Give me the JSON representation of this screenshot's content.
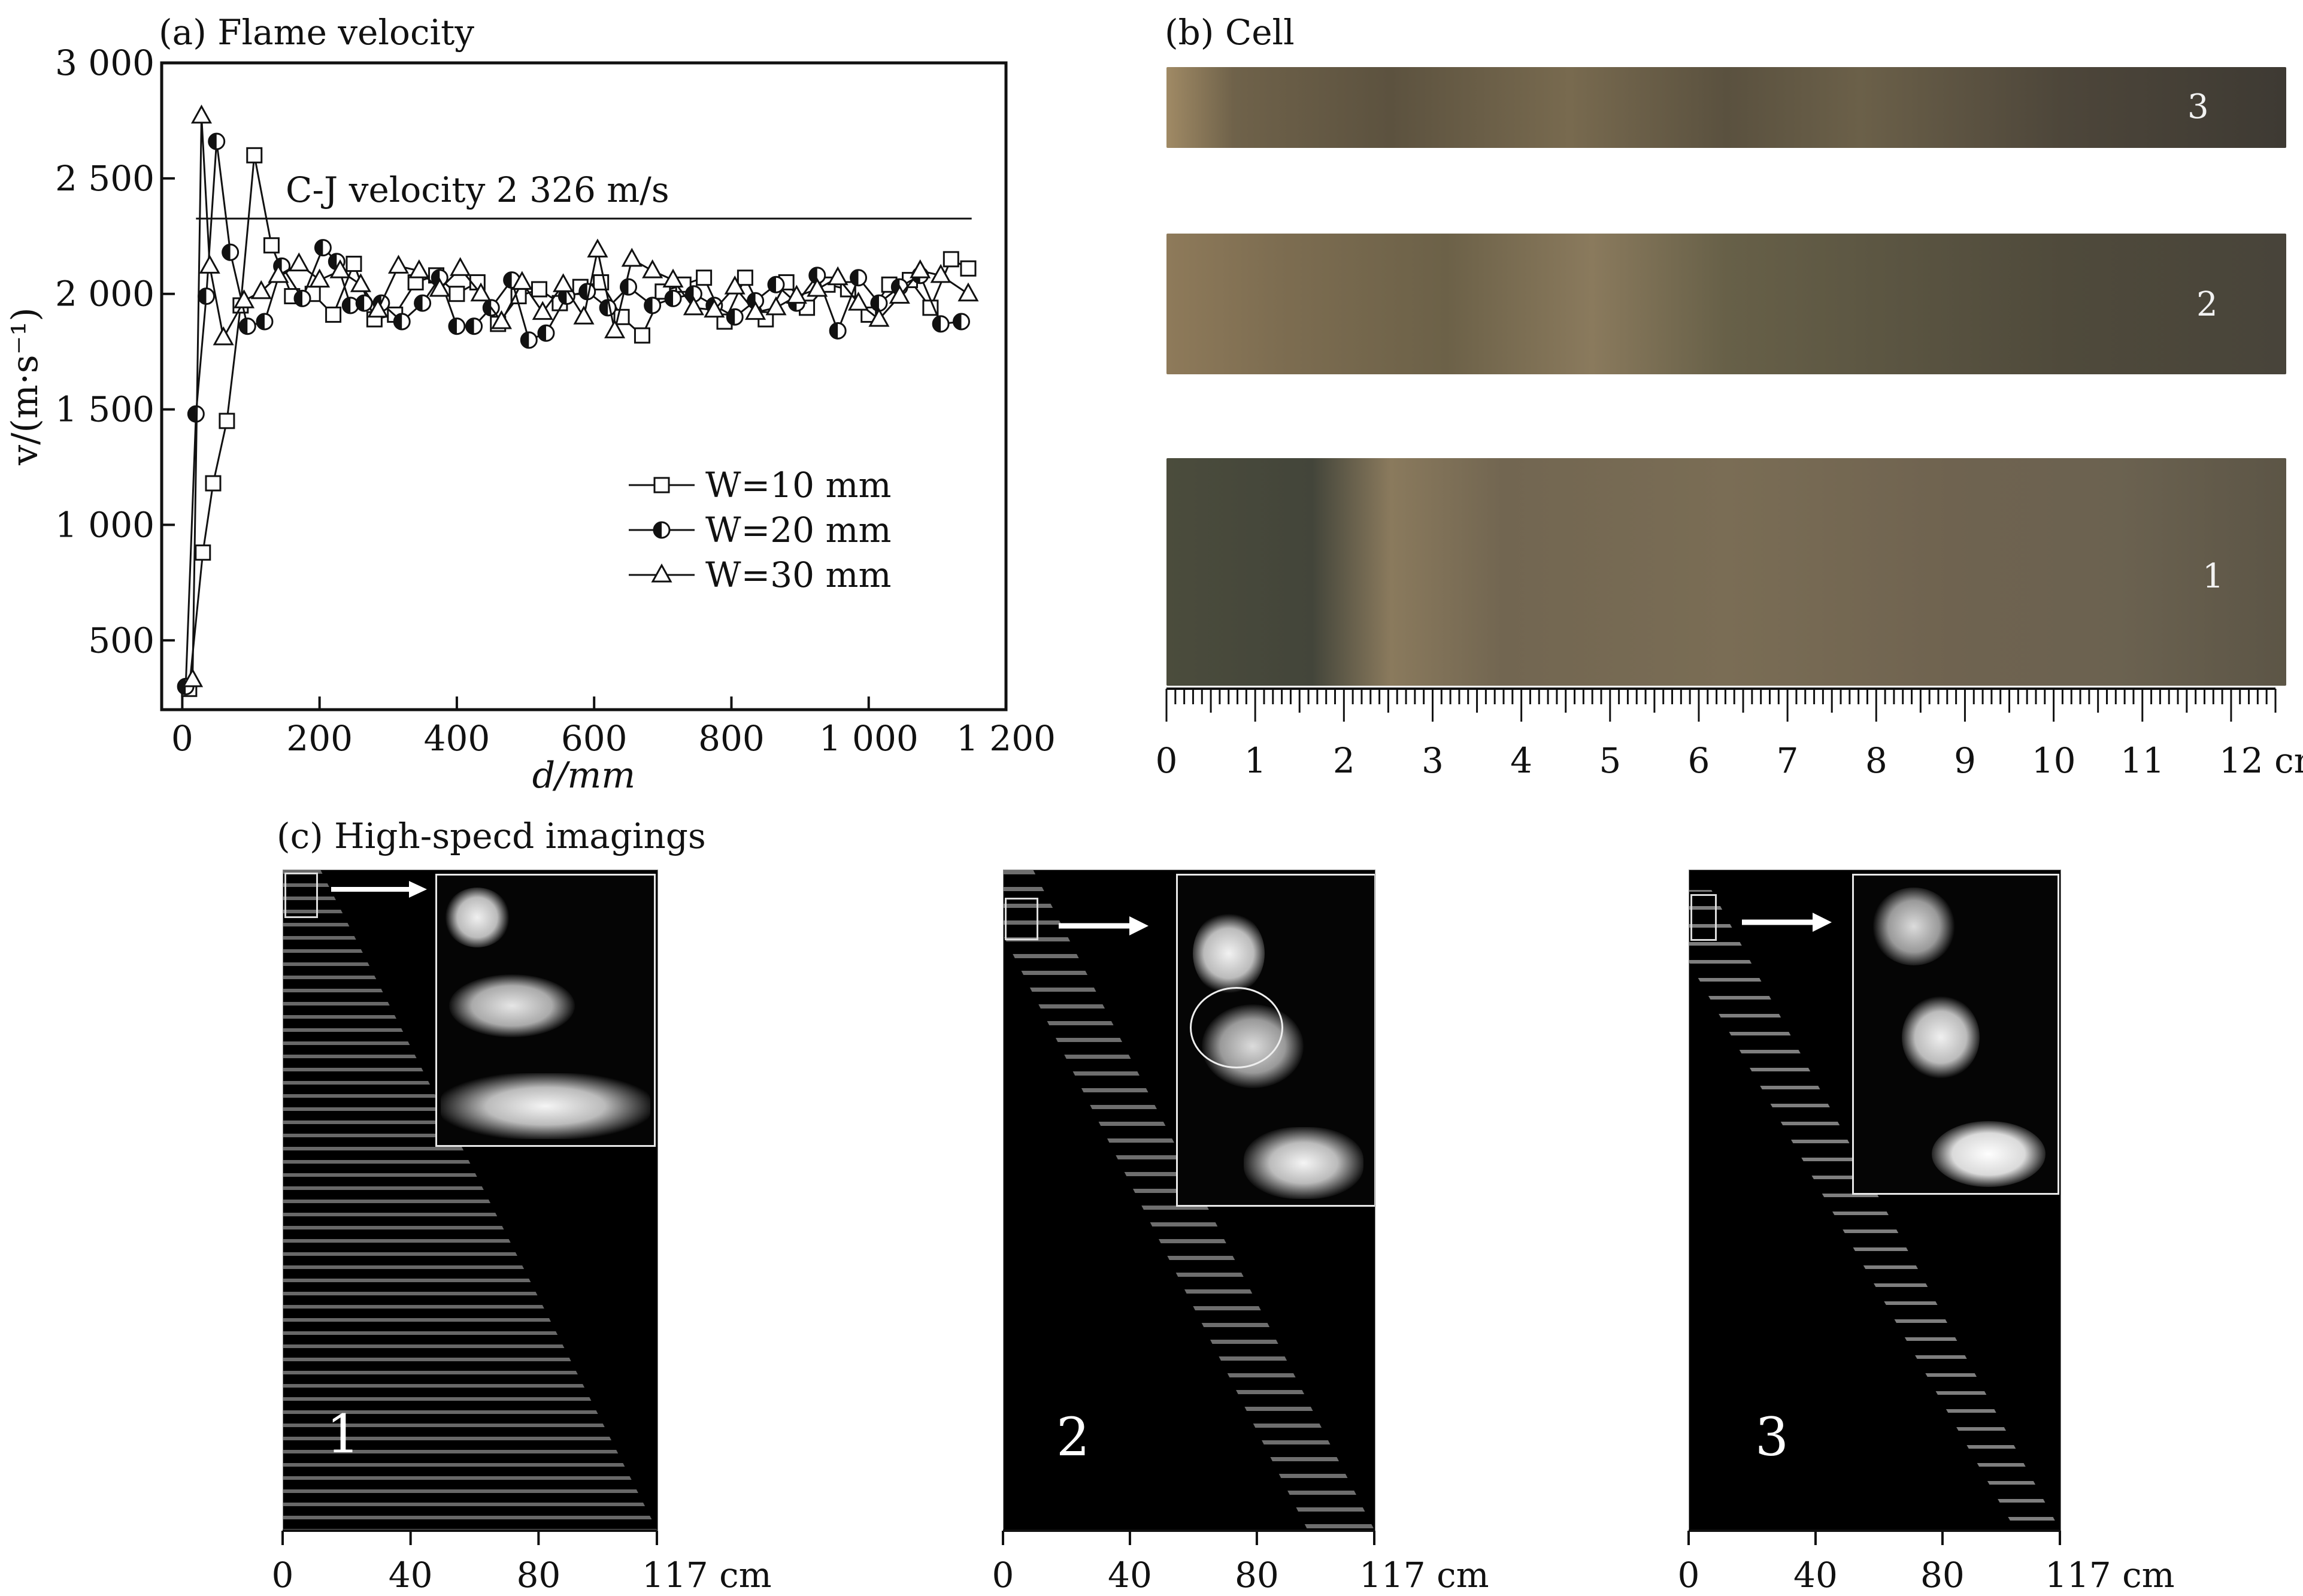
{
  "panel_a": {
    "title": "(a) Flame velocity"
  },
  "panel_b": {
    "title": "(b) Cell",
    "strip_labels": [
      "3",
      "2",
      "1"
    ]
  },
  "panel_c": {
    "title": "(c) High-specd imagings",
    "image_labels": [
      "1",
      "2",
      "3"
    ]
  },
  "chart_data": [
    {
      "type": "line",
      "title": "(a) Flame velocity",
      "xlabel": "d/mm",
      "ylabel": "v/(m·s⁻¹)",
      "xlim": [
        -30,
        1200
      ],
      "ylim": [
        200,
        3000
      ],
      "xticks": [
        0,
        200,
        400,
        600,
        800,
        1000,
        1200
      ],
      "xtick_labels": [
        "0",
        "200",
        "400",
        "600",
        "800",
        "1 000",
        "1 200"
      ],
      "yticks": [
        500,
        1000,
        1500,
        2000,
        2500,
        3000
      ],
      "ytick_labels": [
        "500",
        "1 000",
        "1 500",
        "2 000",
        "2 500",
        "3 000"
      ],
      "reference_line": {
        "label": "C-J velocity 2 326 m/s",
        "y": 2326,
        "x_range": [
          20,
          1150
        ]
      },
      "legend_position": "center-right",
      "series": [
        {
          "name": "W=10 mm",
          "marker": "square",
          "x": [
            10,
            30,
            45,
            65,
            85,
            105,
            130,
            160,
            190,
            220,
            250,
            280,
            310,
            340,
            370,
            400,
            430,
            460,
            490,
            520,
            550,
            580,
            610,
            640,
            670,
            700,
            730,
            760,
            790,
            820,
            850,
            880,
            910,
            940,
            970,
            1000,
            1030,
            1060,
            1090,
            1120,
            1145
          ],
          "y": [
            290,
            880,
            1180,
            1450,
            1950,
            2600,
            2210,
            1990,
            2000,
            1910,
            2130,
            1890,
            1910,
            2050,
            2080,
            2000,
            2050,
            1870,
            1990,
            2020,
            1960,
            2030,
            2050,
            1900,
            1820,
            2010,
            2040,
            2070,
            1880,
            2070,
            1890,
            2050,
            1940,
            2040,
            2020,
            1910,
            2040,
            2060,
            1940,
            2150,
            2110
          ]
        },
        {
          "name": "W=20 mm",
          "marker": "half-filled-circle",
          "x": [
            5,
            20,
            35,
            50,
            70,
            95,
            120,
            145,
            175,
            205,
            225,
            245,
            265,
            290,
            320,
            350,
            375,
            400,
            425,
            450,
            480,
            505,
            530,
            560,
            590,
            620,
            650,
            685,
            715,
            745,
            775,
            805,
            835,
            865,
            895,
            925,
            955,
            985,
            1015,
            1045,
            1075,
            1105,
            1135
          ],
          "y": [
            300,
            1480,
            1990,
            2660,
            2180,
            1860,
            1880,
            2120,
            1980,
            2200,
            2140,
            1950,
            1960,
            1960,
            1880,
            1960,
            2070,
            1860,
            1860,
            1940,
            2060,
            1800,
            1830,
            1990,
            2010,
            1940,
            2030,
            1950,
            1980,
            2000,
            1950,
            1900,
            1970,
            2040,
            1960,
            2080,
            1840,
            2070,
            1960,
            2030,
            2080,
            1870,
            1880
          ]
        },
        {
          "name": "W=30 mm",
          "marker": "triangle",
          "x": [
            15,
            28,
            40,
            60,
            90,
            115,
            140,
            170,
            200,
            230,
            260,
            285,
            315,
            345,
            375,
            405,
            435,
            465,
            495,
            525,
            555,
            585,
            605,
            630,
            655,
            685,
            715,
            745,
            775,
            805,
            835,
            865,
            895,
            925,
            955,
            985,
            1015,
            1045,
            1075,
            1105,
            1145
          ],
          "y": [
            330,
            2770,
            2120,
            1810,
            1970,
            2010,
            2080,
            2130,
            2060,
            2100,
            2040,
            1930,
            2120,
            2100,
            2020,
            2110,
            2000,
            1880,
            2050,
            1920,
            2040,
            1900,
            2190,
            1840,
            2150,
            2100,
            2060,
            1940,
            1930,
            2030,
            1920,
            1940,
            1990,
            2020,
            2070,
            1960,
            1890,
            1990,
            2100,
            2080,
            2000
          ]
        }
      ]
    },
    {
      "type": "scatter",
      "title": "(b) Cell",
      "xlabel": "cm",
      "xlim": [
        0,
        12.5
      ],
      "xticks": [
        0,
        1,
        2,
        3,
        4,
        5,
        6,
        7,
        8,
        9,
        10,
        11,
        12
      ],
      "xtick_labels": [
        "0",
        "1",
        "2",
        "3",
        "4",
        "5",
        "6",
        "7",
        "8",
        "9",
        "10",
        "11",
        "12 cm"
      ]
    },
    {
      "type": "scatter",
      "title": "(c) High-specd imagings",
      "xlabel": "cm",
      "xlim": [
        0,
        117
      ],
      "xticks": [
        0,
        40,
        80,
        117
      ],
      "xtick_labels": [
        "0",
        "40",
        "80",
        "117 cm"
      ]
    }
  ],
  "colors": {
    "axis": "#111111",
    "background": "#ffffff",
    "imaging_background": "#000000",
    "cell_strip": "#6b6048"
  },
  "icons": [
    "arrow-right-icon",
    "arrow-right-icon",
    "arrow-right-icon"
  ]
}
